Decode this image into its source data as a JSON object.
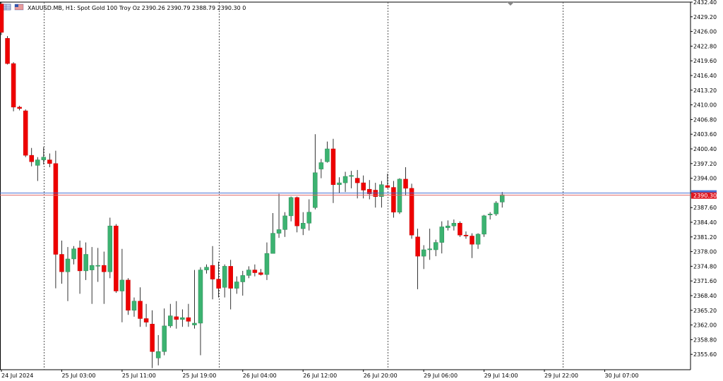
{
  "header": {
    "symbol_line": "XAUUSD.MB, H1:  Spot Gold 100 Troy Oz  2390.26 2390.79 2388.79 2390.30  0"
  },
  "chart_data": {
    "type": "candlestick",
    "symbol": "XAUUSD.MB",
    "timeframe": "H1",
    "description": "Spot Gold 100 Troy Oz",
    "ohlc_last": {
      "open": 2390.26,
      "high": 2390.79,
      "low": 2388.79,
      "close": 2390.3
    },
    "current_price_label": "2390.30",
    "current_price": 2390.3,
    "ylim": [
      2353.0,
      2432.6
    ],
    "y_ticks": [
      "2432.40",
      "2429.20",
      "2426.00",
      "2422.80",
      "2419.60",
      "2416.40",
      "2413.20",
      "2410.00",
      "2406.80",
      "2403.60",
      "2400.40",
      "2397.20",
      "2394.00",
      "2390.80",
      "2387.60",
      "2384.40",
      "2381.20",
      "2378.00",
      "2374.80",
      "2371.60",
      "2368.40",
      "2365.20",
      "2362.00",
      "2358.80",
      "2355.60"
    ],
    "x_ticks": [
      "24 Jul 2024",
      "25 Jul 03:00",
      "25 Jul 11:00",
      "25 Jul 19:00",
      "26 Jul 04:00",
      "26 Jul 12:00",
      "26 Jul 20:00",
      "29 Jul 06:00",
      "29 Jul 14:00",
      "29 Jul 22:00",
      "30 Jul 07:00"
    ],
    "x_tick_bar_index": [
      0,
      10,
      20,
      30,
      40,
      50,
      60,
      70,
      80,
      90,
      100
    ],
    "vertical_separator_bar_index": [
      7,
      36,
      64,
      93
    ],
    "colors": {
      "bull": "#3cb371",
      "bear": "#ee0000",
      "bid_line": "#e06666",
      "ask_line": "#4a6fd0",
      "grid": "#555555"
    },
    "candles": [
      {
        "o": 2432.0,
        "h": 2432.4,
        "l": 2425.2,
        "c": 2425.8
      },
      {
        "o": 2424.5,
        "h": 2425.0,
        "l": 2418.8,
        "c": 2419.0
      },
      {
        "o": 2419.0,
        "h": 2419.3,
        "l": 2408.6,
        "c": 2409.5
      },
      {
        "o": 2409.5,
        "h": 2409.8,
        "l": 2408.8,
        "c": 2409.2
      },
      {
        "o": 2408.7,
        "h": 2409.0,
        "l": 2398.6,
        "c": 2399.0
      },
      {
        "o": 2399.0,
        "h": 2400.6,
        "l": 2396.6,
        "c": 2397.6
      },
      {
        "o": 2396.8,
        "h": 2398.6,
        "l": 2393.4,
        "c": 2398.0
      },
      {
        "o": 2398.0,
        "h": 2400.8,
        "l": 2397.0,
        "c": 2398.6
      },
      {
        "o": 2398.0,
        "h": 2399.4,
        "l": 2396.4,
        "c": 2397.2
      },
      {
        "o": 2397.2,
        "h": 2400.0,
        "l": 2370.0,
        "c": 2377.4
      },
      {
        "o": 2377.4,
        "h": 2380.4,
        "l": 2371.0,
        "c": 2373.6
      },
      {
        "o": 2373.6,
        "h": 2379.0,
        "l": 2367.2,
        "c": 2376.4
      },
      {
        "o": 2376.4,
        "h": 2379.2,
        "l": 2375.2,
        "c": 2378.6
      },
      {
        "o": 2378.8,
        "h": 2380.4,
        "l": 2368.8,
        "c": 2373.8
      },
      {
        "o": 2373.8,
        "h": 2380.0,
        "l": 2371.8,
        "c": 2377.4
      },
      {
        "o": 2374.0,
        "h": 2379.0,
        "l": 2366.6,
        "c": 2375.0
      },
      {
        "o": 2375.0,
        "h": 2378.8,
        "l": 2371.4,
        "c": 2375.0
      },
      {
        "o": 2375.0,
        "h": 2378.0,
        "l": 2366.6,
        "c": 2373.6
      },
      {
        "o": 2373.6,
        "h": 2385.4,
        "l": 2372.2,
        "c": 2383.6
      },
      {
        "o": 2383.6,
        "h": 2384.0,
        "l": 2369.0,
        "c": 2369.4
      },
      {
        "o": 2369.4,
        "h": 2378.6,
        "l": 2362.6,
        "c": 2371.8
      },
      {
        "o": 2371.8,
        "h": 2372.2,
        "l": 2364.2,
        "c": 2365.2
      },
      {
        "o": 2365.2,
        "h": 2368.0,
        "l": 2363.8,
        "c": 2367.2
      },
      {
        "o": 2367.2,
        "h": 2370.2,
        "l": 2361.6,
        "c": 2363.4
      },
      {
        "o": 2363.4,
        "h": 2366.6,
        "l": 2361.6,
        "c": 2362.6
      },
      {
        "o": 2362.2,
        "h": 2365.2,
        "l": 2352.6,
        "c": 2356.2
      },
      {
        "o": 2354.8,
        "h": 2359.8,
        "l": 2353.2,
        "c": 2356.2
      },
      {
        "o": 2356.2,
        "h": 2365.6,
        "l": 2355.4,
        "c": 2361.8
      },
      {
        "o": 2361.8,
        "h": 2366.6,
        "l": 2361.4,
        "c": 2364.0
      },
      {
        "o": 2363.8,
        "h": 2367.2,
        "l": 2361.2,
        "c": 2363.2
      },
      {
        "o": 2363.2,
        "h": 2365.4,
        "l": 2361.6,
        "c": 2363.6
      },
      {
        "o": 2363.6,
        "h": 2366.6,
        "l": 2361.6,
        "c": 2362.8
      },
      {
        "o": 2362.0,
        "h": 2374.0,
        "l": 2361.2,
        "c": 2362.4
      },
      {
        "o": 2362.4,
        "h": 2374.6,
        "l": 2355.4,
        "c": 2374.0
      },
      {
        "o": 2374.0,
        "h": 2375.2,
        "l": 2373.2,
        "c": 2374.6
      },
      {
        "o": 2375.0,
        "h": 2379.2,
        "l": 2367.6,
        "c": 2372.0
      },
      {
        "o": 2372.0,
        "h": 2375.8,
        "l": 2368.0,
        "c": 2370.0
      },
      {
        "o": 2370.2,
        "h": 2375.2,
        "l": 2368.0,
        "c": 2374.8
      },
      {
        "o": 2374.8,
        "h": 2376.2,
        "l": 2365.4,
        "c": 2370.0
      },
      {
        "o": 2370.0,
        "h": 2372.6,
        "l": 2368.8,
        "c": 2371.4
      },
      {
        "o": 2371.4,
        "h": 2373.8,
        "l": 2368.4,
        "c": 2372.8
      },
      {
        "o": 2372.8,
        "h": 2374.8,
        "l": 2372.2,
        "c": 2374.0
      },
      {
        "o": 2374.0,
        "h": 2375.2,
        "l": 2372.6,
        "c": 2373.4
      },
      {
        "o": 2373.4,
        "h": 2374.2,
        "l": 2372.8,
        "c": 2373.0
      },
      {
        "o": 2373.0,
        "h": 2380.0,
        "l": 2371.8,
        "c": 2377.6
      },
      {
        "o": 2377.6,
        "h": 2386.4,
        "l": 2377.6,
        "c": 2382.0
      },
      {
        "o": 2382.0,
        "h": 2390.6,
        "l": 2381.0,
        "c": 2382.8
      },
      {
        "o": 2382.8,
        "h": 2386.6,
        "l": 2381.2,
        "c": 2385.8
      },
      {
        "o": 2385.8,
        "h": 2390.0,
        "l": 2384.6,
        "c": 2389.8
      },
      {
        "o": 2389.8,
        "h": 2390.0,
        "l": 2382.2,
        "c": 2383.6
      },
      {
        "o": 2383.0,
        "h": 2386.6,
        "l": 2381.6,
        "c": 2384.2
      },
      {
        "o": 2384.2,
        "h": 2389.4,
        "l": 2382.6,
        "c": 2386.6
      },
      {
        "o": 2387.6,
        "h": 2403.6,
        "l": 2387.2,
        "c": 2395.2
      },
      {
        "o": 2396.0,
        "h": 2398.2,
        "l": 2394.0,
        "c": 2397.4
      },
      {
        "o": 2397.6,
        "h": 2402.0,
        "l": 2397.4,
        "c": 2400.4
      },
      {
        "o": 2400.4,
        "h": 2402.6,
        "l": 2388.6,
        "c": 2392.6
      },
      {
        "o": 2392.6,
        "h": 2394.2,
        "l": 2390.8,
        "c": 2393.0
      },
      {
        "o": 2393.0,
        "h": 2395.4,
        "l": 2391.0,
        "c": 2394.4
      },
      {
        "o": 2394.4,
        "h": 2395.6,
        "l": 2391.8,
        "c": 2394.6
      },
      {
        "o": 2394.0,
        "h": 2395.8,
        "l": 2389.6,
        "c": 2393.0
      },
      {
        "o": 2393.0,
        "h": 2394.6,
        "l": 2389.6,
        "c": 2391.4
      },
      {
        "o": 2391.6,
        "h": 2393.6,
        "l": 2389.4,
        "c": 2390.6
      },
      {
        "o": 2391.4,
        "h": 2393.0,
        "l": 2387.6,
        "c": 2390.0
      },
      {
        "o": 2390.0,
        "h": 2393.4,
        "l": 2387.6,
        "c": 2392.6
      },
      {
        "o": 2392.4,
        "h": 2395.0,
        "l": 2391.8,
        "c": 2392.0
      },
      {
        "o": 2392.0,
        "h": 2393.4,
        "l": 2385.4,
        "c": 2386.6
      },
      {
        "o": 2386.6,
        "h": 2394.0,
        "l": 2386.2,
        "c": 2393.8
      },
      {
        "o": 2393.8,
        "h": 2396.4,
        "l": 2390.2,
        "c": 2391.8
      },
      {
        "o": 2391.8,
        "h": 2392.8,
        "l": 2380.8,
        "c": 2381.6
      },
      {
        "o": 2381.2,
        "h": 2383.0,
        "l": 2369.8,
        "c": 2377.0
      },
      {
        "o": 2377.0,
        "h": 2379.4,
        "l": 2374.2,
        "c": 2378.4
      },
      {
        "o": 2378.4,
        "h": 2383.0,
        "l": 2376.2,
        "c": 2378.6
      },
      {
        "o": 2378.4,
        "h": 2380.6,
        "l": 2377.0,
        "c": 2380.0
      },
      {
        "o": 2380.0,
        "h": 2384.6,
        "l": 2377.6,
        "c": 2383.4
      },
      {
        "o": 2383.2,
        "h": 2384.8,
        "l": 2382.6,
        "c": 2383.6
      },
      {
        "o": 2383.6,
        "h": 2385.0,
        "l": 2382.6,
        "c": 2384.2
      },
      {
        "o": 2384.2,
        "h": 2384.6,
        "l": 2381.2,
        "c": 2381.6
      },
      {
        "o": 2381.6,
        "h": 2382.4,
        "l": 2380.8,
        "c": 2381.4
      },
      {
        "o": 2381.4,
        "h": 2382.0,
        "l": 2376.6,
        "c": 2379.6
      },
      {
        "o": 2379.6,
        "h": 2382.0,
        "l": 2378.6,
        "c": 2381.8
      },
      {
        "o": 2381.8,
        "h": 2386.0,
        "l": 2381.2,
        "c": 2385.8
      },
      {
        "o": 2386.0,
        "h": 2386.6,
        "l": 2385.0,
        "c": 2386.2
      },
      {
        "o": 2386.2,
        "h": 2389.0,
        "l": 2385.8,
        "c": 2388.6
      },
      {
        "o": 2388.8,
        "h": 2391.0,
        "l": 2387.6,
        "c": 2390.4
      }
    ]
  }
}
